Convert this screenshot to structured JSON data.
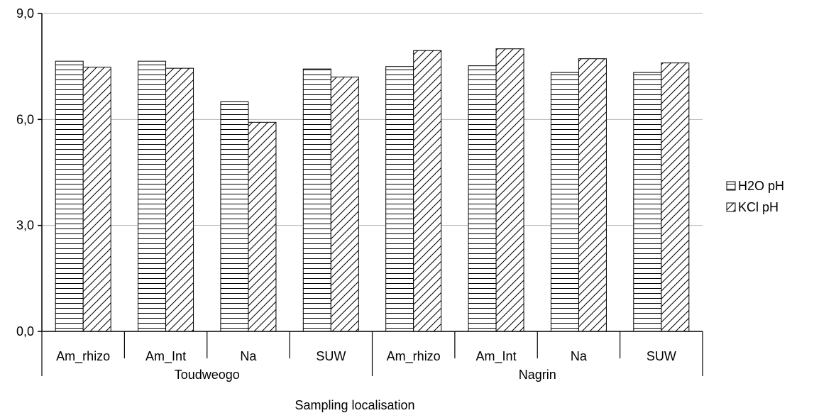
{
  "chart_data": {
    "type": "bar",
    "xlabel": "Sampling localisation",
    "ylabel": "",
    "ylim": [
      0,
      9
    ],
    "yticks": [
      "0,0",
      "3,0",
      "6,0",
      "9,0"
    ],
    "grid": true,
    "legend_position": "right",
    "groups": [
      {
        "label": "Toudweogo",
        "categories": [
          "Am_rhizo",
          "Am_Int",
          "Na",
          "SUW"
        ]
      },
      {
        "label": "Nagrin",
        "categories": [
          "Am_rhizo",
          "Am_Int",
          "Na",
          "SUW"
        ]
      }
    ],
    "categories": [
      "Am_rhizo",
      "Am_Int",
      "Na",
      "SUW",
      "Am_rhizo",
      "Am_Int",
      "Na",
      "SUW"
    ],
    "series": [
      {
        "name": "H2O pH",
        "pattern": "horizontal-lines",
        "values": [
          7.65,
          7.65,
          6.5,
          7.43,
          7.5,
          7.52,
          7.33,
          7.33
        ]
      },
      {
        "name": "KCl pH",
        "pattern": "diagonal-lines",
        "values": [
          7.48,
          7.45,
          5.92,
          7.2,
          7.95,
          8.0,
          7.72,
          7.6
        ]
      }
    ]
  }
}
